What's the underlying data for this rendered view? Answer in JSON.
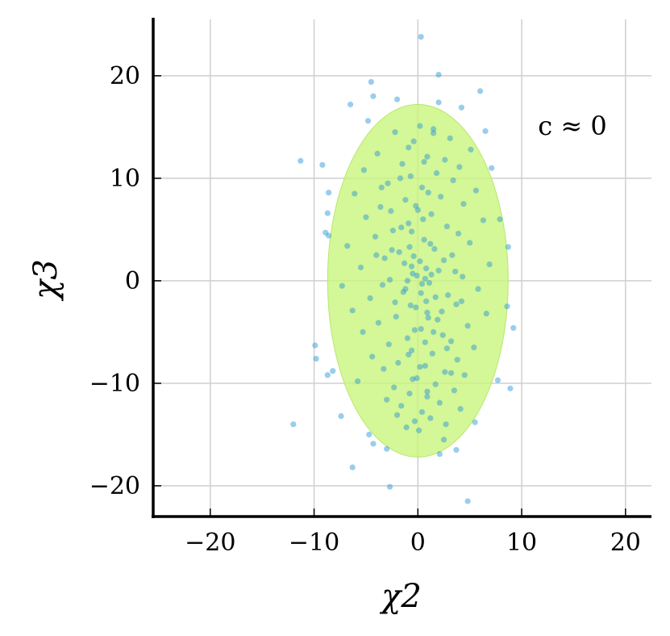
{
  "chart_data": {
    "type": "scatter",
    "title": "",
    "xlabel": "χ2",
    "ylabel": "χ3",
    "xlim": [
      -25.5,
      22.5
    ],
    "ylim": [
      -23.0,
      25.5
    ],
    "xticks": [
      -20,
      -10,
      0,
      10,
      20
    ],
    "yticks": [
      -20,
      -10,
      0,
      10,
      20
    ],
    "xtick_labels": [
      "−20",
      "−10",
      "0",
      "10",
      "20"
    ],
    "ytick_labels": [
      "−20",
      "−10",
      "0",
      "10",
      "20"
    ],
    "grid": true,
    "annotation": "c ≈ 0",
    "ellipse": {
      "center": [
        0,
        0
      ],
      "semi_x": 8.7,
      "semi_y": 17.2
    },
    "series": [
      {
        "points": [
          [
            0.3,
            23.8
          ],
          [
            2.0,
            20.1
          ],
          [
            -4.5,
            19.4
          ],
          [
            6.0,
            18.5
          ],
          [
            -4.3,
            18.0
          ],
          [
            -2.0,
            17.7
          ],
          [
            2.0,
            17.4
          ],
          [
            -6.5,
            17.2
          ],
          [
            6.5,
            14.6
          ],
          [
            -11.3,
            11.7
          ],
          [
            -9.2,
            11.3
          ],
          [
            7.1,
            11.0
          ],
          [
            -8.6,
            8.6
          ],
          [
            -8.7,
            6.6
          ],
          [
            -8.9,
            4.7
          ],
          [
            -8.6,
            4.4
          ],
          [
            -9.9,
            -6.3
          ],
          [
            -9.8,
            -7.6
          ],
          [
            -8.7,
            -9.2
          ],
          [
            -8.2,
            -8.8
          ],
          [
            -7.4,
            -13.2
          ],
          [
            -12.0,
            -14.0
          ],
          [
            -4.3,
            -15.9
          ],
          [
            -6.3,
            -18.2
          ],
          [
            -2.7,
            -20.1
          ],
          [
            4.8,
            -21.5
          ],
          [
            2.1,
            -16.9
          ],
          [
            3.7,
            -16.5
          ],
          [
            7.7,
            -9.7
          ],
          [
            8.9,
            -10.5
          ],
          [
            9.2,
            -4.6
          ],
          [
            8.6,
            -2.5
          ],
          [
            8.7,
            3.3
          ],
          [
            7.9,
            6.0
          ],
          [
            -3.0,
            -16.4
          ],
          [
            2.5,
            -15.5
          ],
          [
            5.5,
            -13.8
          ],
          [
            -4.8,
            15.6
          ],
          [
            4.2,
            16.9
          ],
          [
            0.2,
            15.1
          ],
          [
            1.5,
            14.8
          ],
          [
            -2.2,
            14.5
          ],
          [
            3.1,
            13.9
          ],
          [
            -0.4,
            13.6
          ],
          [
            5.1,
            12.8
          ],
          [
            -3.9,
            12.4
          ],
          [
            0.9,
            12.1
          ],
          [
            2.6,
            11.8
          ],
          [
            -1.5,
            11.4
          ],
          [
            4.0,
            11.1
          ],
          [
            -5.2,
            10.8
          ],
          [
            1.8,
            10.5
          ],
          [
            -0.7,
            10.2
          ],
          [
            3.4,
            9.8
          ],
          [
            -2.9,
            9.5
          ],
          [
            0.4,
            9.1
          ],
          [
            5.6,
            8.8
          ],
          [
            -6.1,
            8.5
          ],
          [
            2.2,
            8.2
          ],
          [
            -1.2,
            7.9
          ],
          [
            4.4,
            7.5
          ],
          [
            -3.6,
            7.2
          ],
          [
            0.0,
            6.9
          ],
          [
            1.3,
            6.5
          ],
          [
            -5.0,
            6.2
          ],
          [
            6.3,
            5.9
          ],
          [
            -0.9,
            5.6
          ],
          [
            2.8,
            5.3
          ],
          [
            -2.4,
            4.9
          ],
          [
            3.9,
            4.6
          ],
          [
            -4.1,
            4.3
          ],
          [
            0.6,
            4.0
          ],
          [
            5.0,
            3.7
          ],
          [
            -6.8,
            3.4
          ],
          [
            1.6,
            3.1
          ],
          [
            -1.8,
            2.8
          ],
          [
            3.3,
            2.5
          ],
          [
            -3.2,
            2.2
          ],
          [
            0.2,
            1.9
          ],
          [
            6.9,
            1.6
          ],
          [
            -5.5,
            1.3
          ],
          [
            2.0,
            1.0
          ],
          [
            -0.5,
            0.7
          ],
          [
            4.3,
            0.4
          ],
          [
            -2.7,
            0.1
          ],
          [
            1.1,
            -0.2
          ],
          [
            -7.3,
            -0.5
          ],
          [
            5.8,
            -0.8
          ],
          [
            -1.4,
            -1.1
          ],
          [
            2.9,
            -1.4
          ],
          [
            -4.6,
            -1.7
          ],
          [
            0.8,
            -2.0
          ],
          [
            3.7,
            -2.3
          ],
          [
            -0.2,
            -2.6
          ],
          [
            -6.3,
            -2.9
          ],
          [
            6.6,
            -3.2
          ],
          [
            -2.1,
            -3.5
          ],
          [
            1.9,
            -3.8
          ],
          [
            -3.8,
            -4.1
          ],
          [
            4.8,
            -4.4
          ],
          [
            0.3,
            -4.7
          ],
          [
            -5.3,
            -5.0
          ],
          [
            2.4,
            -5.3
          ],
          [
            -1.0,
            -5.6
          ],
          [
            3.2,
            -5.9
          ],
          [
            -2.8,
            -6.2
          ],
          [
            5.4,
            -6.5
          ],
          [
            -0.6,
            -6.8
          ],
          [
            1.4,
            -7.1
          ],
          [
            -4.4,
            -7.4
          ],
          [
            3.8,
            -7.7
          ],
          [
            -1.9,
            -8.0
          ],
          [
            0.7,
            -8.3
          ],
          [
            -3.3,
            -8.6
          ],
          [
            2.6,
            -8.9
          ],
          [
            4.5,
            -9.2
          ],
          [
            -0.1,
            -9.5
          ],
          [
            -5.8,
            -9.8
          ],
          [
            1.7,
            -10.1
          ],
          [
            -2.3,
            -10.4
          ],
          [
            3.5,
            -10.7
          ],
          [
            -0.8,
            -11.0
          ],
          [
            0.9,
            -11.3
          ],
          [
            -3.0,
            -11.6
          ],
          [
            2.1,
            -11.9
          ],
          [
            -1.6,
            -12.2
          ],
          [
            4.1,
            -12.5
          ],
          [
            0.4,
            -12.8
          ],
          [
            -2.0,
            -13.1
          ],
          [
            1.2,
            -13.4
          ],
          [
            -0.3,
            -13.7
          ],
          [
            2.7,
            -14.0
          ],
          [
            -1.1,
            -14.3
          ],
          [
            0.1,
            -14.6
          ],
          [
            -4.7,
            -15.0
          ],
          [
            1.5,
            14.4
          ],
          [
            -0.9,
            13.0
          ],
          [
            0.6,
            11.6
          ],
          [
            -1.7,
            10.0
          ],
          [
            1.0,
            8.6
          ],
          [
            -0.2,
            7.3
          ],
          [
            0.5,
            6.0
          ],
          [
            -0.6,
            4.8
          ],
          [
            1.2,
            3.6
          ],
          [
            -0.4,
            2.4
          ],
          [
            0.8,
            1.2
          ],
          [
            -1.0,
            0.0
          ],
          [
            0.3,
            -1.2
          ],
          [
            -0.7,
            -2.4
          ],
          [
            1.0,
            -3.6
          ],
          [
            -0.3,
            -4.8
          ],
          [
            0.7,
            -6.0
          ],
          [
            -0.9,
            -7.2
          ],
          [
            0.2,
            -8.4
          ],
          [
            -0.5,
            -9.6
          ],
          [
            0.9,
            -10.8
          ],
          [
            -2.5,
            3.0
          ],
          [
            2.3,
            -3.0
          ],
          [
            -3.4,
            -0.4
          ],
          [
            3.6,
            0.9
          ],
          [
            -1.3,
            1.7
          ],
          [
            1.7,
            -1.6
          ],
          [
            -2.2,
            -2.1
          ],
          [
            2.5,
            2.0
          ],
          [
            -0.8,
            3.3
          ],
          [
            0.9,
            -3.1
          ],
          [
            -4.0,
            2.5
          ],
          [
            4.2,
            -2.0
          ],
          [
            -1.6,
            5.2
          ],
          [
            1.5,
            -5.0
          ],
          [
            -2.6,
            6.8
          ],
          [
            2.8,
            -6.6
          ],
          [
            -3.5,
            9.1
          ],
          [
            3.2,
            -9.0
          ],
          [
            -0.1,
            0.5
          ],
          [
            0.4,
            -0.3
          ],
          [
            -0.6,
            1.4
          ],
          [
            0.7,
            0.2
          ],
          [
            -1.2,
            -0.8
          ],
          [
            1.3,
            0.6
          ]
        ]
      }
    ]
  }
}
